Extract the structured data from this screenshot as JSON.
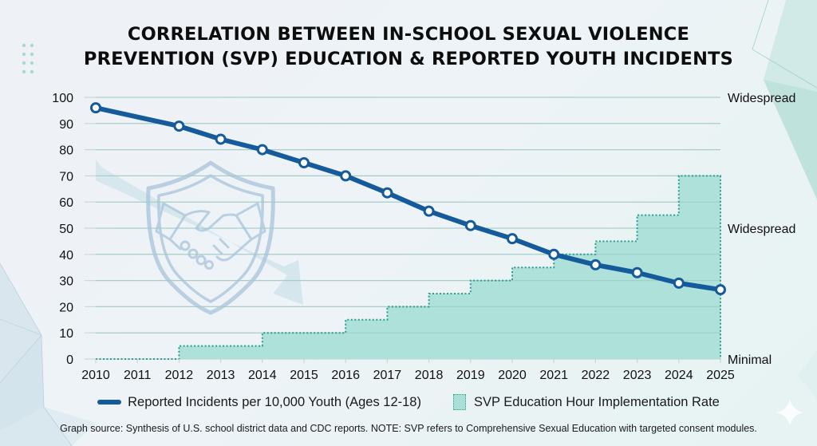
{
  "title_lines": [
    "CORRELATION BETWEEN IN-SCHOOL SEXUAL VIOLENCE",
    "PREVENTION (SVP) EDUCATION & REPORTED YOUTH INCIDENTS"
  ],
  "legend": {
    "line_label": "Reported Incidents per 10,000 Youth (Ages 12-18)",
    "area_label": "SVP Education Hour Implementation Rate"
  },
  "footnote": "Graph source: Synthesis of U.S. school district data and CDC reports. NOTE: SVP refers to Comprehensive Sexual Education with targeted consent modules.",
  "colors": {
    "line": "#155a9a",
    "area_fill": "#aadfd8",
    "area_border": "#2a9d8f",
    "grid": "#cfd4d9"
  },
  "chart_data": {
    "type": "line",
    "title": "CORRELATION BETWEEN IN-SCHOOL SEXUAL VIOLENCE PREVENTION (SVP) EDUCATION & REPORTED YOUTH INCIDENTS",
    "xlabel": "",
    "ylabel": "",
    "x": [
      2010,
      2011,
      2012,
      2013,
      2014,
      2015,
      2016,
      2017,
      2018,
      2019,
      2020,
      2021,
      2022,
      2023,
      2024,
      2025
    ],
    "x_tick_labels": [
      "2010",
      "2011",
      "2012",
      "2013",
      "2014",
      "2015",
      "2016",
      "2017",
      "2018",
      "2019",
      "2020",
      "2021",
      "2022",
      "2023",
      "2024",
      "2025"
    ],
    "ylim": [
      0,
      100
    ],
    "y_ticks": [
      0,
      10,
      20,
      30,
      40,
      50,
      60,
      70,
      80,
      90,
      100
    ],
    "y_tick_labels": [
      "0",
      "10",
      "20",
      "30",
      "40",
      "50",
      "60",
      "70",
      "80",
      "90",
      "100"
    ],
    "right_axis_labels": [
      {
        "value": 100,
        "label": "Widespread"
      },
      {
        "value": 50,
        "label": "Widespread"
      },
      {
        "value": 0,
        "label": "Minimal"
      }
    ],
    "grid": true,
    "legend_position": "bottom",
    "series": [
      {
        "name": "Reported Incidents per 10,000 Youth (Ages 12-18)",
        "kind": "line-with-markers",
        "points": [
          {
            "x": 2010,
            "y": 96
          },
          {
            "x": 2012,
            "y": 89
          },
          {
            "x": 2013,
            "y": 84
          },
          {
            "x": 2014,
            "y": 80
          },
          {
            "x": 2015,
            "y": 75
          },
          {
            "x": 2016,
            "y": 70
          },
          {
            "x": 2017,
            "y": 63.5
          },
          {
            "x": 2018,
            "y": 56.5
          },
          {
            "x": 2019,
            "y": 51
          },
          {
            "x": 2020,
            "y": 46
          },
          {
            "x": 2021,
            "y": 40
          },
          {
            "x": 2022,
            "y": 36
          },
          {
            "x": 2023,
            "y": 33
          },
          {
            "x": 2024,
            "y": 29
          },
          {
            "x": 2025,
            "y": 26.5
          }
        ]
      },
      {
        "name": "SVP Education Hour Implementation Rate",
        "kind": "step-area",
        "steps": [
          {
            "from": 2010,
            "to": 2012,
            "y": 0
          },
          {
            "from": 2012,
            "to": 2014,
            "y": 5
          },
          {
            "from": 2014,
            "to": 2016,
            "y": 10
          },
          {
            "from": 2016,
            "to": 2017,
            "y": 15
          },
          {
            "from": 2017,
            "to": 2018,
            "y": 20
          },
          {
            "from": 2018,
            "to": 2019,
            "y": 25
          },
          {
            "from": 2019,
            "to": 2020,
            "y": 30
          },
          {
            "from": 2020,
            "to": 2021,
            "y": 35
          },
          {
            "from": 2021,
            "to": 2022,
            "y": 40
          },
          {
            "from": 2022,
            "to": 2023,
            "y": 45
          },
          {
            "from": 2023,
            "to": 2024,
            "y": 55
          },
          {
            "from": 2024,
            "to": 2025,
            "y": 70
          }
        ]
      }
    ]
  }
}
